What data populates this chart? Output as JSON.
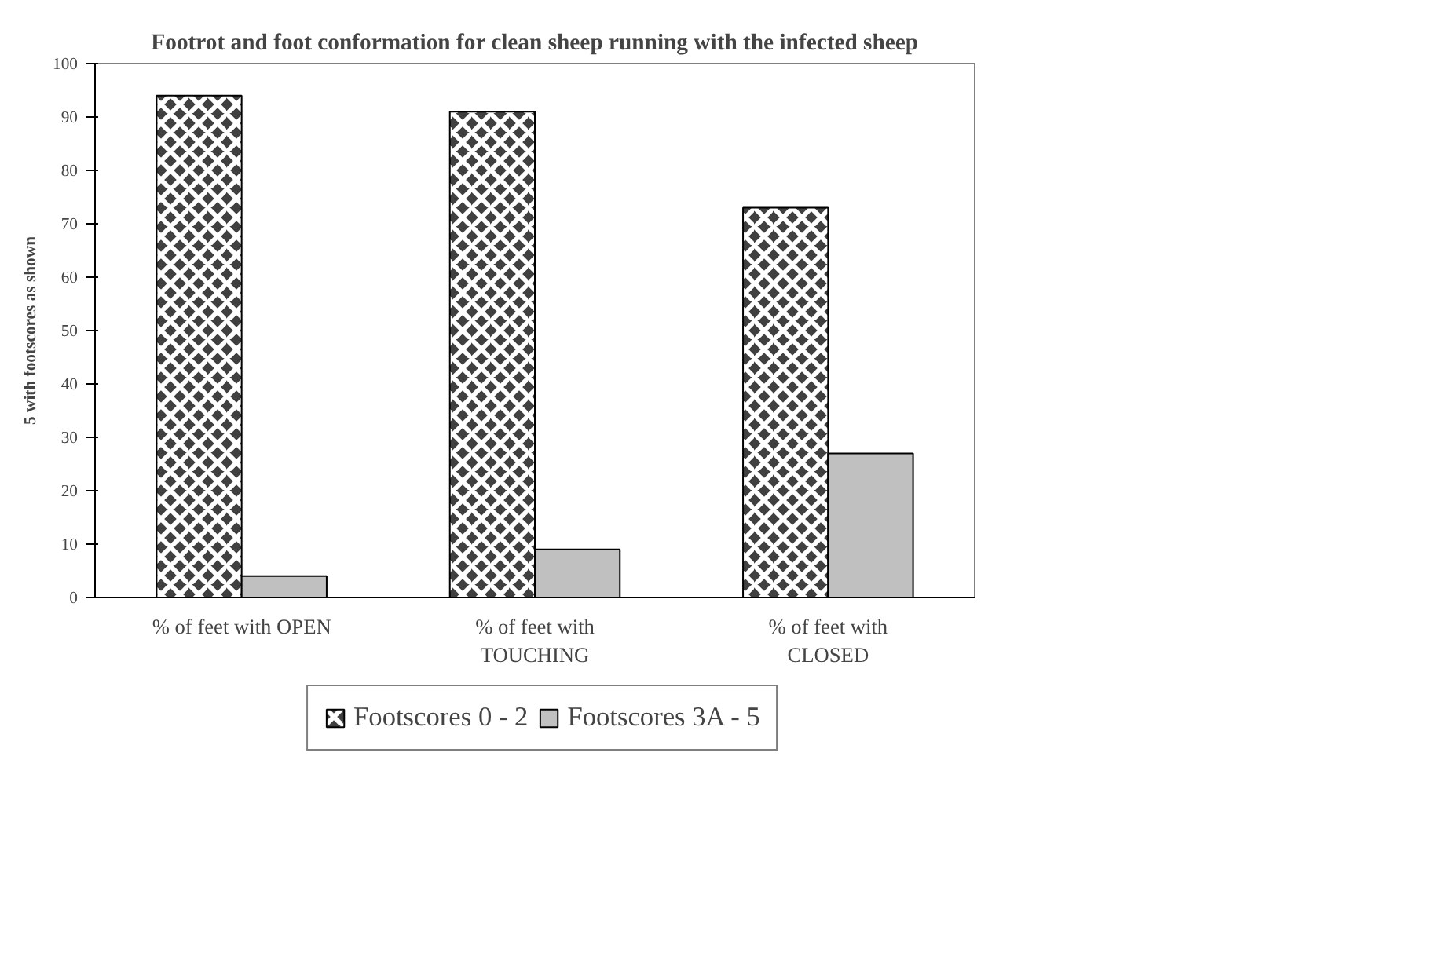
{
  "chart_data": {
    "type": "bar",
    "title": "Footrot and foot conformation for clean sheep running with the infected sheep",
    "ylabel": "5 with footscores as shown",
    "categories": [
      "% of feet with OPEN",
      "% of feet with\nTOUCHING",
      "% of feet with\nCLOSED"
    ],
    "series": [
      {
        "name": "Footscores 0 - 2",
        "color": "#404040",
        "values": [
          94,
          91,
          73
        ]
      },
      {
        "name": "Footscores 3A - 5",
        "color": "#c0c0c0",
        "values": [
          4,
          9,
          27
        ]
      }
    ],
    "ylim": [
      0,
      100
    ],
    "yticks": [
      0,
      10,
      20,
      30,
      40,
      50,
      60,
      70,
      80,
      90,
      100
    ],
    "grid": false,
    "legend": "bottom"
  }
}
